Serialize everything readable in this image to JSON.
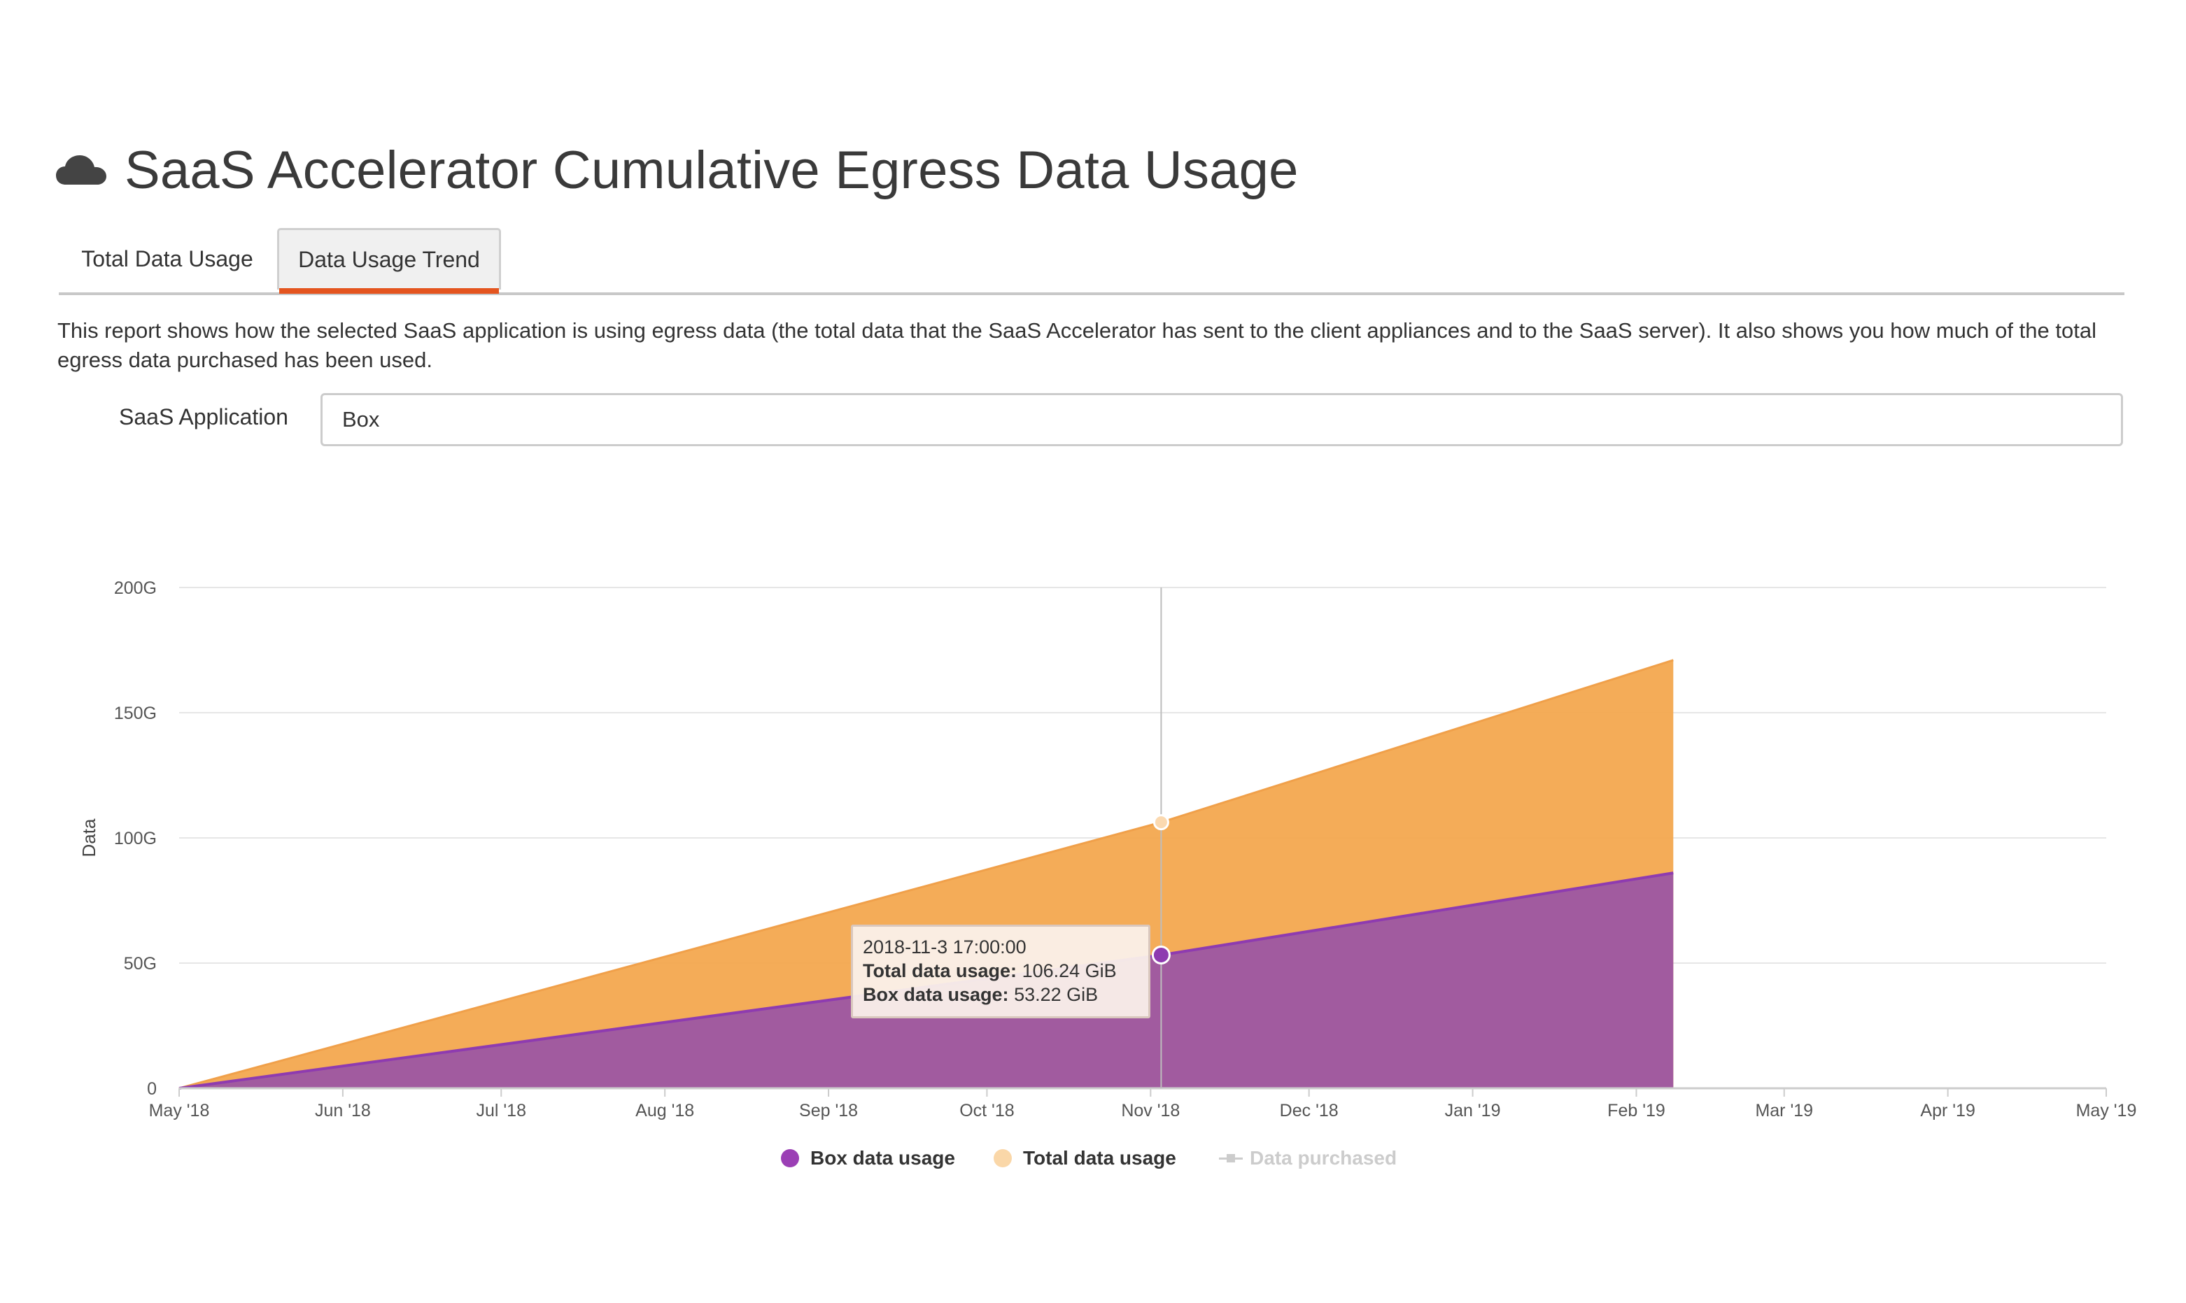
{
  "header": {
    "title": "SaaS Accelerator Cumulative Egress Data Usage",
    "icon": "cloud-icon"
  },
  "tabs": [
    {
      "label": "Total Data Usage",
      "active": false
    },
    {
      "label": "Data Usage Trend",
      "active": true
    }
  ],
  "description": "This report shows how the selected SaaS application is using egress data (the total data that the SaaS Accelerator has sent to the client appliances and to the SaaS server). It also shows you how much of the total egress data purchased has been used.",
  "filter": {
    "label": "SaaS Application",
    "value": "Box"
  },
  "tooltip": {
    "date": "2018-11-3 17:00:00",
    "total_label": "Total data usage:",
    "total_value": "106.24 GiB",
    "box_label": "Box data usage:",
    "box_value": "53.22 GiB"
  },
  "legend": [
    {
      "label": "Box data usage",
      "color": "#9b3fb5",
      "enabled": true
    },
    {
      "label": "Total data usage",
      "color": "#fad7a8",
      "enabled": true
    },
    {
      "label": "Data purchased",
      "color": "#cccccc",
      "enabled": false
    }
  ],
  "chart_data": {
    "type": "area",
    "ylabel": "Data",
    "y_ticks": [
      "0",
      "50G",
      "100G",
      "150G",
      "200G"
    ],
    "ylim": [
      0,
      200
    ],
    "x_ticks": [
      "May '18",
      "Jun '18",
      "Jul '18",
      "Aug '18",
      "Sep '18",
      "Oct '18",
      "Nov '18",
      "Dec '18",
      "Jan '19",
      "Feb '19",
      "Mar '19",
      "Apr '19",
      "May '19"
    ],
    "x_range": [
      "2018-05-01",
      "2019-05-01"
    ],
    "series": [
      {
        "name": "Total data usage",
        "color": "#f3a84f",
        "points": [
          [
            "2018-05-01",
            0
          ],
          [
            "2018-11-03",
            106.24
          ],
          [
            "2019-02-08",
            171
          ]
        ]
      },
      {
        "name": "Box data usage",
        "color": "#a15b9f",
        "line_color": "#8e3bb0",
        "points": [
          [
            "2018-05-01",
            0
          ],
          [
            "2018-11-03",
            53.22
          ],
          [
            "2019-02-08",
            86
          ]
        ]
      }
    ],
    "hover": {
      "date": "2018-11-03",
      "total": 106.24,
      "box": 53.22
    },
    "grid": true,
    "legend_position": "bottom"
  },
  "colors": {
    "accent_tab": "#e4551f"
  }
}
